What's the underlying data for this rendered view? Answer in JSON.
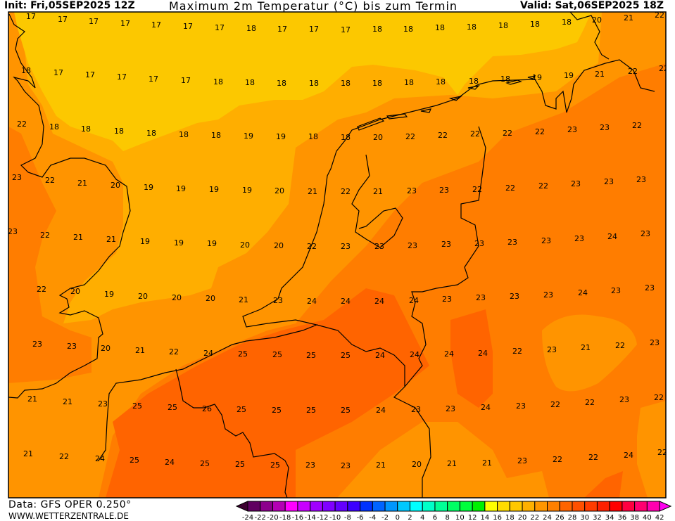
{
  "header": {
    "init": "Init: Fri,05SEP2025 12Z",
    "title": "Maximum 2m Temperatur (°C) bis zum Termin",
    "valid": "Valid: Sat,06SEP2025 18Z"
  },
  "footer": {
    "data_source": "Data: GFS OPER 0.250°",
    "website": "WWW.WETTERZENTRALE.DE"
  },
  "map": {
    "field_colors": {
      "16-18": "#fcc800",
      "18-20": "#ffae00",
      "20-22": "#ff9400",
      "22-24": "#ff7d00",
      "24-26": "#ff6400"
    },
    "coastline_color": "#000000",
    "temperature_rows": [
      [
        "17",
        "17",
        "17",
        "17",
        "17",
        "17",
        "17",
        "18",
        "17",
        "17",
        "17",
        "18",
        "18",
        "18",
        "18",
        "18",
        "18",
        "18",
        "20",
        "21",
        "22"
      ],
      [
        "18",
        "17",
        "17",
        "17",
        "17",
        "17",
        "18",
        "18",
        "18",
        "18",
        "18",
        "18",
        "18",
        "18",
        "18",
        "18",
        "19",
        "19",
        "21",
        "22",
        "22"
      ],
      [
        "22",
        "18",
        "18",
        "18",
        "18",
        "18",
        "18",
        "19",
        "19",
        "18",
        "18",
        "20",
        "22",
        "22",
        "22",
        "22",
        "22",
        "23",
        "23",
        "22"
      ],
      [
        "23",
        "22",
        "21",
        "20",
        "19",
        "19",
        "19",
        "19",
        "20",
        "21",
        "22",
        "21",
        "23",
        "23",
        "22",
        "22",
        "22",
        "23",
        "23",
        "23"
      ],
      [
        "23",
        "22",
        "21",
        "21",
        "19",
        "19",
        "19",
        "20",
        "20",
        "22",
        "23",
        "23",
        "23",
        "23",
        "23",
        "23",
        "23",
        "23",
        "24",
        "23"
      ],
      [
        "22",
        "20",
        "19",
        "20",
        "20",
        "20",
        "21",
        "23",
        "24",
        "24",
        "24",
        "24",
        "23",
        "23",
        "23",
        "23",
        "24",
        "23",
        "23"
      ],
      [
        "23",
        "23",
        "20",
        "21",
        "22",
        "24",
        "25",
        "25",
        "25",
        "25",
        "24",
        "24",
        "24",
        "24",
        "22",
        "23",
        "21",
        "22",
        "23"
      ],
      [
        "21",
        "21",
        "23",
        "25",
        "25",
        "26",
        "25",
        "25",
        "25",
        "25",
        "24",
        "23",
        "23",
        "24",
        "23",
        "22",
        "22",
        "23",
        "22"
      ],
      [
        "21",
        "22",
        "24",
        "25",
        "24",
        "25",
        "25",
        "25",
        "23",
        "23",
        "21",
        "20",
        "21",
        "21",
        "23",
        "22",
        "22",
        "24",
        "22"
      ]
    ]
  },
  "legend": {
    "ticks": [
      "-24",
      "-22",
      "-20",
      "-18",
      "-16",
      "-14",
      "-12",
      "-10",
      "-8",
      "-6",
      "-4",
      "-2",
      "0",
      "2",
      "4",
      "6",
      "8",
      "10",
      "12",
      "14",
      "16",
      "18",
      "20",
      "22",
      "24",
      "26",
      "28",
      "30",
      "32",
      "34",
      "36",
      "38",
      "40",
      "42"
    ],
    "low_arrow_color": "#3c0030",
    "high_arrow_color": "#ff00f0",
    "colors": [
      "#600060",
      "#8c008c",
      "#b400b4",
      "#ff00ff",
      "#c800ff",
      "#a000ff",
      "#8000ff",
      "#6400ff",
      "#3c00ff",
      "#0032ff",
      "#0064ff",
      "#0096ff",
      "#00c8ff",
      "#00ffff",
      "#00ffc8",
      "#00ff96",
      "#00ff64",
      "#00ff3c",
      "#00f000",
      "#ffff00",
      "#ffdc00",
      "#ffc800",
      "#ffb000",
      "#ff9600",
      "#ff8000",
      "#ff6400",
      "#ff5000",
      "#ff3c00",
      "#ff2000",
      "#ff0000",
      "#ff0040",
      "#ff0070",
      "#ff00b0"
    ]
  }
}
